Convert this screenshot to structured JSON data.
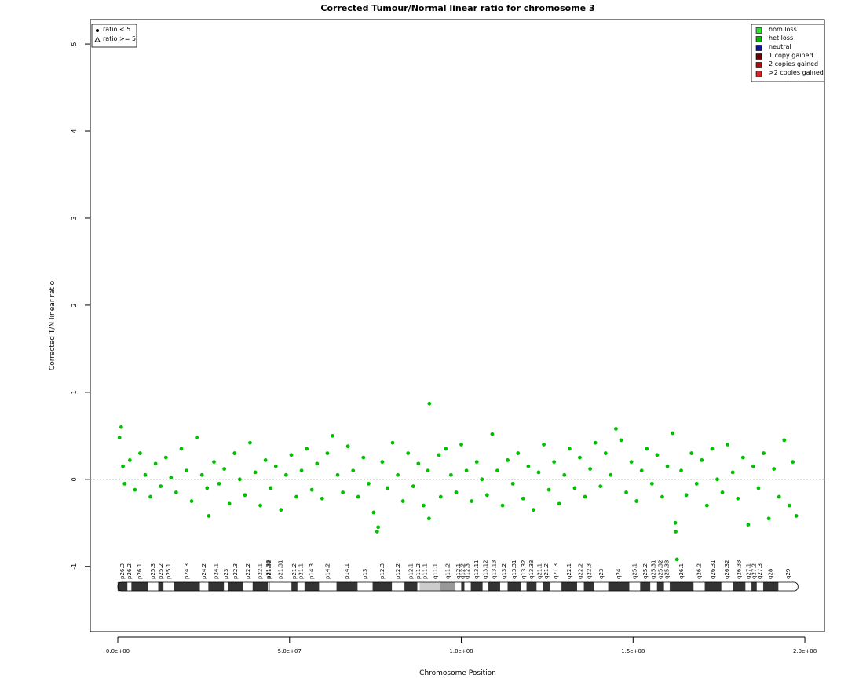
{
  "chart_data": {
    "type": "scatter",
    "title": "Corrected Tumour/Normal linear ratio for chromosome  3",
    "xlabel": "Chromosome Position",
    "ylabel": "Corrected T/N linear ratio",
    "xlim": [
      -8000000,
      205700000
    ],
    "ylim": [
      -1.75,
      5.28
    ],
    "xticks": [
      {
        "value": 0,
        "label": "0.0e+00"
      },
      {
        "value": 50000000,
        "label": "5.0e+07"
      },
      {
        "value": 100000000,
        "label": "1.0e+08"
      },
      {
        "value": 150000000,
        "label": "1.5e+08"
      },
      {
        "value": 200000000,
        "label": "2.0e+08"
      }
    ],
    "yticks": [
      -1,
      0,
      1,
      2,
      3,
      4,
      5
    ],
    "hline": 0,
    "shape_legend": [
      "ratio < 5",
      "ratio >= 5"
    ],
    "state_legend": [
      {
        "name": "hom loss",
        "color": "#33dd33"
      },
      {
        "name": "het loss",
        "color": "#00b400"
      },
      {
        "name": "neutral",
        "color": "#1010a0"
      },
      {
        "name": "1 copy gained",
        "color": "#700000"
      },
      {
        "name": "2 copies gained",
        "color": "#a81010"
      },
      {
        "name": ">2 copies gained",
        "color": "#e02020"
      }
    ],
    "series": [
      {
        "color": "#00c000",
        "x": [
          500000,
          1000000,
          1500000,
          2000000,
          3500000,
          5000000,
          6500000,
          8000000,
          9500000,
          11000000,
          12500000,
          14000000,
          15500000,
          17000000,
          18500000,
          20000000,
          21500000,
          23000000,
          24500000,
          26000000,
          26500000,
          28000000,
          29500000,
          31000000,
          32500000,
          34000000,
          35500000,
          37000000,
          38500000,
          40000000,
          41500000,
          43000000,
          44500000,
          46000000,
          47500000,
          49000000,
          50500000,
          52000000,
          53500000,
          55000000,
          56500000,
          58000000,
          59500000,
          61000000,
          62500000,
          64000000,
          65500000,
          67000000,
          68500000,
          70000000,
          71500000,
          73000000,
          74500000,
          75500000,
          75800000,
          77000000,
          78500000,
          80000000,
          81500000,
          83000000,
          84500000,
          86000000,
          87500000,
          89000000,
          90300000,
          90600000,
          90700000,
          93500000,
          94000000,
          95500000,
          97000000,
          98500000,
          100000000,
          101500000,
          103000000,
          104500000,
          106000000,
          107500000,
          109000000,
          110500000,
          112000000,
          113500000,
          115000000,
          116500000,
          118000000,
          119500000,
          121000000,
          122500000,
          124000000,
          125500000,
          127000000,
          128500000,
          130000000,
          131500000,
          133000000,
          134500000,
          136000000,
          137500000,
          139000000,
          140500000,
          142000000,
          143500000,
          145000000,
          146500000,
          148000000,
          149500000,
          151000000,
          152500000,
          154000000,
          155500000,
          157000000,
          158500000,
          160000000,
          161500000,
          162300000,
          162400000,
          162800000,
          164000000,
          165500000,
          167000000,
          168500000,
          170000000,
          171500000,
          173000000,
          174500000,
          176000000,
          177500000,
          179000000,
          180500000,
          182000000,
          183500000,
          185000000,
          186500000,
          188000000,
          189500000,
          191000000,
          192500000,
          194000000,
          195500000,
          196500000,
          197500000
        ],
        "y": [
          0.48,
          0.6,
          0.15,
          -0.05,
          0.22,
          -0.12,
          0.3,
          0.05,
          -0.2,
          0.18,
          -0.08,
          0.25,
          0.02,
          -0.15,
          0.35,
          0.1,
          -0.25,
          0.48,
          0.05,
          -0.1,
          -0.42,
          0.2,
          -0.05,
          0.12,
          -0.28,
          0.3,
          0,
          -0.18,
          0.42,
          0.08,
          -0.3,
          0.22,
          -0.1,
          0.15,
          -0.35,
          0.05,
          0.28,
          -0.2,
          0.1,
          0.35,
          -0.12,
          0.18,
          -0.22,
          0.3,
          0.5,
          0.05,
          -0.15,
          0.38,
          0.1,
          -0.2,
          0.25,
          -0.05,
          -0.38,
          -0.6,
          -0.55,
          0.2,
          -0.1,
          0.42,
          0.05,
          -0.25,
          0.3,
          -0.08,
          0.18,
          -0.3,
          0.1,
          -0.45,
          0.87,
          0.28,
          -0.2,
          0.35,
          0.05,
          -0.15,
          0.4,
          0.1,
          -0.25,
          0.2,
          0,
          -0.18,
          0.52,
          0.1,
          -0.3,
          0.22,
          -0.05,
          0.3,
          -0.22,
          0.15,
          -0.35,
          0.08,
          0.4,
          -0.12,
          0.2,
          -0.28,
          0.05,
          0.35,
          -0.1,
          0.25,
          -0.2,
          0.12,
          0.42,
          -0.08,
          0.3,
          0.05,
          0.58,
          0.45,
          -0.15,
          0.2,
          -0.25,
          0.1,
          0.35,
          -0.05,
          0.28,
          -0.2,
          0.15,
          0.53,
          -0.5,
          -0.6,
          -0.92,
          0.1,
          -0.18,
          0.3,
          -0.05,
          0.22,
          -0.3,
          0.35,
          0,
          -0.15,
          0.4,
          0.08,
          -0.22,
          0.25,
          -0.52,
          0.15,
          -0.1,
          0.3,
          -0.45,
          0.12,
          -0.2,
          0.45,
          -0.3,
          0.2,
          -0.42
        ]
      }
    ],
    "ideogram": {
      "bands": [
        {
          "label": "p26.3",
          "start": 0,
          "end": 2800000,
          "color": "#333333"
        },
        {
          "label": "p26.2",
          "start": 2800000,
          "end": 4000000,
          "color": "#ffffff"
        },
        {
          "label": "p26.1",
          "start": 4000000,
          "end": 8700000,
          "color": "#333333"
        },
        {
          "label": "p25.3",
          "start": 8700000,
          "end": 11800000,
          "color": "#ffffff"
        },
        {
          "label": "p25.2",
          "start": 11800000,
          "end": 13300000,
          "color": "#333333"
        },
        {
          "label": "p25.1",
          "start": 13300000,
          "end": 16400000,
          "color": "#ffffff"
        },
        {
          "label": "p24.3",
          "start": 16400000,
          "end": 23900000,
          "color": "#333333"
        },
        {
          "label": "p24.2",
          "start": 23900000,
          "end": 26400000,
          "color": "#ffffff"
        },
        {
          "label": "p24.1",
          "start": 26400000,
          "end": 30900000,
          "color": "#333333"
        },
        {
          "label": "p23",
          "start": 30900000,
          "end": 32100000,
          "color": "#ffffff"
        },
        {
          "label": "p22.3",
          "start": 32100000,
          "end": 36500000,
          "color": "#333333"
        },
        {
          "label": "p22.2",
          "start": 36500000,
          "end": 39300000,
          "color": "#ffffff"
        },
        {
          "label": "p22.1",
          "start": 39300000,
          "end": 43700000,
          "color": "#333333"
        },
        {
          "label": "p21.33",
          "start": 43700000,
          "end": 44100000,
          "color": "#ffffff"
        },
        {
          "label": "p21.32",
          "start": 44100000,
          "end": 44200000,
          "color": "#333333"
        },
        {
          "label": "p21.31",
          "start": 44200000,
          "end": 50600000,
          "color": "#ffffff"
        },
        {
          "label": "p21.2",
          "start": 50600000,
          "end": 52300000,
          "color": "#333333"
        },
        {
          "label": "p21.1",
          "start": 52300000,
          "end": 54400000,
          "color": "#ffffff"
        },
        {
          "label": "p14.3",
          "start": 54400000,
          "end": 58600000,
          "color": "#333333"
        },
        {
          "label": "p14.2",
          "start": 58600000,
          "end": 63700000,
          "color": "#ffffff"
        },
        {
          "label": "p14.1",
          "start": 63700000,
          "end": 69800000,
          "color": "#333333"
        },
        {
          "label": "p13",
          "start": 69800000,
          "end": 74200000,
          "color": "#ffffff"
        },
        {
          "label": "p12.3",
          "start": 74200000,
          "end": 79800000,
          "color": "#333333"
        },
        {
          "label": "p12.2",
          "start": 79800000,
          "end": 83500000,
          "color": "#ffffff"
        },
        {
          "label": "p12.1",
          "start": 83500000,
          "end": 87200000,
          "color": "#333333"
        },
        {
          "label": "p11.2",
          "start": 87200000,
          "end": 87900000,
          "color": "#ffffff"
        },
        {
          "label": "p11.1",
          "start": 87900000,
          "end": 91000000,
          "color": "#cccccc"
        },
        {
          "label": "q11.1",
          "start": 91000000,
          "end": 93900000,
          "color": "#cccccc"
        },
        {
          "label": "q11.2",
          "start": 93900000,
          "end": 98300000,
          "color": "#999999"
        },
        {
          "label": "q12.1",
          "start": 98300000,
          "end": 100000000,
          "color": "#ffffff"
        },
        {
          "label": "q12.2",
          "start": 100000000,
          "end": 100900000,
          "color": "#333333"
        },
        {
          "label": "q12.3",
          "start": 100900000,
          "end": 102800000,
          "color": "#ffffff"
        },
        {
          "label": "q13.11",
          "start": 102800000,
          "end": 106200000,
          "color": "#333333"
        },
        {
          "label": "q13.12",
          "start": 106200000,
          "end": 107900000,
          "color": "#ffffff"
        },
        {
          "label": "q13.13",
          "start": 107900000,
          "end": 111300000,
          "color": "#333333"
        },
        {
          "label": "q13.2",
          "start": 111300000,
          "end": 113500000,
          "color": "#ffffff"
        },
        {
          "label": "q13.31",
          "start": 113500000,
          "end": 117300000,
          "color": "#333333"
        },
        {
          "label": "q13.32",
          "start": 117300000,
          "end": 119000000,
          "color": "#ffffff"
        },
        {
          "label": "q13.33",
          "start": 119000000,
          "end": 121900000,
          "color": "#333333"
        },
        {
          "label": "q21.1",
          "start": 121900000,
          "end": 123800000,
          "color": "#ffffff"
        },
        {
          "label": "q21.2",
          "start": 123800000,
          "end": 125800000,
          "color": "#333333"
        },
        {
          "label": "q21.3",
          "start": 125800000,
          "end": 129200000,
          "color": "#ffffff"
        },
        {
          "label": "q22.1",
          "start": 129200000,
          "end": 133700000,
          "color": "#333333"
        },
        {
          "label": "q22.2",
          "start": 133700000,
          "end": 135700000,
          "color": "#ffffff"
        },
        {
          "label": "q22.3",
          "start": 135700000,
          "end": 138700000,
          "color": "#333333"
        },
        {
          "label": "q23",
          "start": 138700000,
          "end": 142800000,
          "color": "#ffffff"
        },
        {
          "label": "q24",
          "start": 142800000,
          "end": 148900000,
          "color": "#333333"
        },
        {
          "label": "q25.1",
          "start": 148900000,
          "end": 152100000,
          "color": "#ffffff"
        },
        {
          "label": "q25.2",
          "start": 152100000,
          "end": 155000000,
          "color": "#333333"
        },
        {
          "label": "q25.31",
          "start": 155000000,
          "end": 157000000,
          "color": "#ffffff"
        },
        {
          "label": "q25.32",
          "start": 157000000,
          "end": 159000000,
          "color": "#333333"
        },
        {
          "label": "q25.33",
          "start": 159000000,
          "end": 160700000,
          "color": "#ffffff"
        },
        {
          "label": "q26.1",
          "start": 160700000,
          "end": 167600000,
          "color": "#333333"
        },
        {
          "label": "q26.2",
          "start": 167600000,
          "end": 170900000,
          "color": "#ffffff"
        },
        {
          "label": "q26.31",
          "start": 170900000,
          "end": 175700000,
          "color": "#333333"
        },
        {
          "label": "q26.32",
          "start": 175700000,
          "end": 179000000,
          "color": "#ffffff"
        },
        {
          "label": "q26.33",
          "start": 179000000,
          "end": 182700000,
          "color": "#333333"
        },
        {
          "label": "q27.1",
          "start": 182700000,
          "end": 184500000,
          "color": "#ffffff"
        },
        {
          "label": "q27.2",
          "start": 184500000,
          "end": 186000000,
          "color": "#333333"
        },
        {
          "label": "q27.3",
          "start": 186000000,
          "end": 187900000,
          "color": "#ffffff"
        },
        {
          "label": "q28",
          "start": 187900000,
          "end": 192300000,
          "color": "#333333"
        },
        {
          "label": "q29",
          "start": 192300000,
          "end": 198000000,
          "color": "#ffffff"
        }
      ]
    }
  }
}
